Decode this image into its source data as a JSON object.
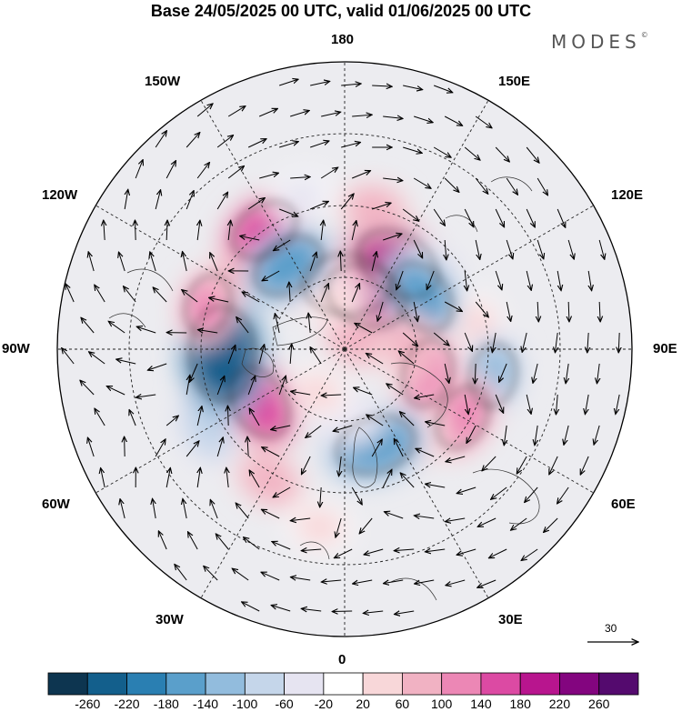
{
  "title": "Base 24/05/2025 00 UTC, valid 01/06/2025 00 UTC",
  "brand": "MODES",
  "brand_mark": "©",
  "longitude_labels": {
    "lon_180": "180",
    "lon_150E": "150E",
    "lon_120E": "120E",
    "lon_90E": "90E",
    "lon_60E": "60E",
    "lon_30E": "30E",
    "lon_0": "0",
    "lon_30W": "30W",
    "lon_60W": "60W",
    "lon_90W": "90W",
    "lon_120W": "120W",
    "lon_150W": "150W"
  },
  "reference_vector": "30",
  "colorbar": {
    "ticks": [
      "-260",
      "-220",
      "-180",
      "-140",
      "-100",
      "-60",
      "-20",
      "20",
      "60",
      "100",
      "140",
      "180",
      "220",
      "260"
    ],
    "colors": [
      "#0d3550",
      "#135f8c",
      "#2a7fb2",
      "#5a9fcb",
      "#92bcdd",
      "#c5d6ea",
      "#e6e4f1",
      "#ffffff",
      "#f8d7d9",
      "#f1b2c3",
      "#ec87b5",
      "#dc4aa3",
      "#b8158e",
      "#83057f",
      "#540a6e"
    ]
  },
  "anomalies": [
    {
      "lon": 156,
      "lat": 80,
      "value": -30
    },
    {
      "lon": 178,
      "lat": 72,
      "value": -220
    },
    {
      "lon": 158,
      "lat": 74,
      "value": 200
    },
    {
      "lon": 148,
      "lat": 62,
      "value": 210
    },
    {
      "lon": 132,
      "lat": 58,
      "value": -60
    },
    {
      "lon": 142,
      "lat": 86,
      "value": 70
    },
    {
      "lon": 124,
      "lat": 64,
      "value": -160
    },
    {
      "lon": 100,
      "lat": 52,
      "value": 40
    },
    {
      "lon": 80,
      "lat": 48,
      "value": -110
    },
    {
      "lon": 74,
      "lat": 66,
      "value": 130
    },
    {
      "lon": 60,
      "lat": 52,
      "value": 120
    },
    {
      "lon": 40,
      "lat": 58,
      "value": 50
    },
    {
      "lon": 18,
      "lat": 62,
      "value": -180
    },
    {
      "lon": 4,
      "lat": 70,
      "value": -60
    },
    {
      "lon": 352,
      "lat": 40,
      "value": 40
    },
    {
      "lon": 330,
      "lat": 48,
      "value": 70
    },
    {
      "lon": 300,
      "lat": 46,
      "value": -90
    },
    {
      "lon": 302,
      "lat": 62,
      "value": 160
    },
    {
      "lon": 272,
      "lat": 56,
      "value": -250
    },
    {
      "lon": 252,
      "lat": 50,
      "value": 100
    },
    {
      "lon": 232,
      "lat": 54,
      "value": 60
    },
    {
      "lon": 214,
      "lat": 50,
      "value": 140
    },
    {
      "lon": 206,
      "lat": 68,
      "value": 90
    },
    {
      "lon": 192,
      "lat": 76,
      "value": 30
    },
    {
      "lon": 168,
      "lat": 50,
      "value": 60
    },
    {
      "lon": 196,
      "lat": 46,
      "value": -40
    },
    {
      "lon": 92,
      "lat": 72,
      "value": 60
    },
    {
      "lon": 330,
      "lat": 76,
      "value": 40
    },
    {
      "lon": 214,
      "lat": 62,
      "value": -150
    }
  ]
}
